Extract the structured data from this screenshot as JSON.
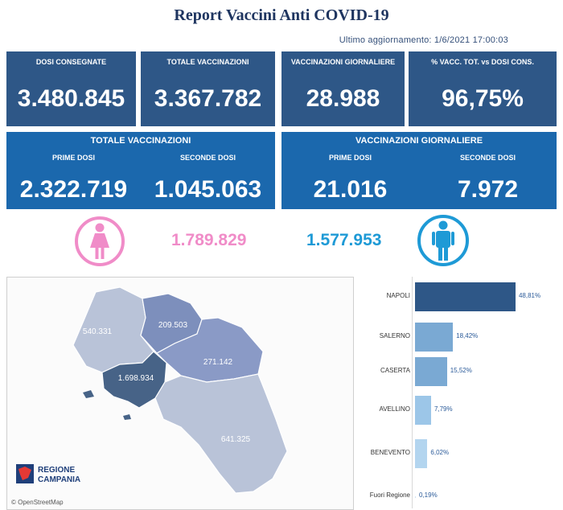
{
  "title": "Report Vaccini Anti COVID-19",
  "updated": "Ultimo aggiornamento: 1/6/2021 17:00:03",
  "kpis": [
    {
      "label": "DOSI CONSEGNATE",
      "value": "3.480.845"
    },
    {
      "label": "TOTALE VACCINAZIONI",
      "value": "3.367.782"
    },
    {
      "label": "VACCINAZIONI GIORNALIERE",
      "value": "28.988"
    },
    {
      "label": "% VACC. TOT. vs DOSI CONS.",
      "value": "96,75%"
    }
  ],
  "totale": {
    "title": "TOTALE VACCINAZIONI",
    "first_label": "PRIME DOSI",
    "first_value": "2.322.719",
    "second_label": "SECONDE DOSI",
    "second_value": "1.045.063"
  },
  "giornaliere": {
    "title": "VACCINAZIONI GIORNALIERE",
    "first_label": "PRIME DOSI",
    "first_value": "21.016",
    "second_label": "SECONDE DOSI",
    "second_value": "7.972"
  },
  "gender": {
    "female": "1.789.829",
    "male": "1.577.953",
    "female_color": "#f08cc8",
    "male_color": "#1e9ad6"
  },
  "map": {
    "labels": {
      "caserta": "540.331",
      "benevento": "209.503",
      "avellino": "271.142",
      "napoli": "1.698.934",
      "salerno": "641.325"
    },
    "logo_line1": "REGIONE",
    "logo_line2": "CAMPANIA",
    "attribution": "© OpenStreetMap"
  },
  "chart_data": {
    "type": "bar",
    "orientation": "horizontal",
    "categories": [
      "NAPOLI",
      "SALERNO",
      "CASERTA",
      "AVELLINO",
      "BENEVENTO",
      "Fuori Regione"
    ],
    "values": [
      48.81,
      18.42,
      15.52,
      7.79,
      6.02,
      0.19
    ],
    "labels": [
      "48,81%",
      "18,42%",
      "15,52%",
      "7,79%",
      "6,02%",
      "0,19%"
    ],
    "colors": [
      "#2e5787",
      "#7aa9d3",
      "#7aa9d3",
      "#9cc6e8",
      "#b3d5ef",
      "#cfe3f4"
    ],
    "xlim": [
      0,
      50
    ]
  }
}
